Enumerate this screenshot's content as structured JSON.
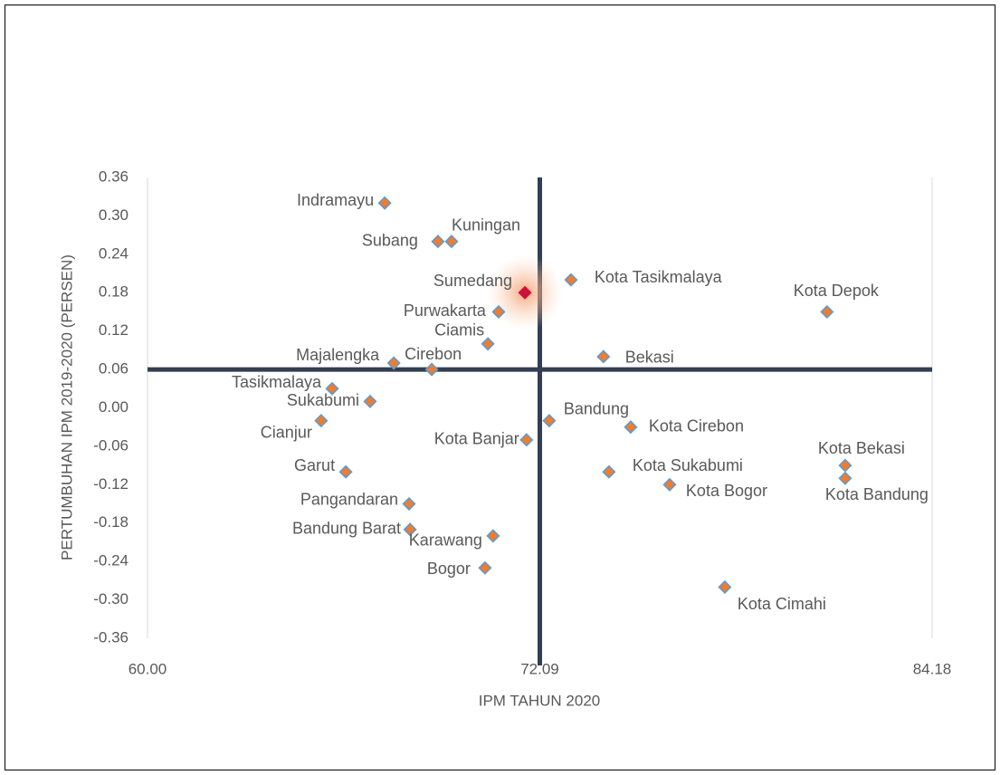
{
  "chart_data": {
    "type": "scatter",
    "x_label": "IPM TAHUN 2020",
    "y_label": "PERTUMBUHAN IPM 2019-2020 (PERSEN)",
    "xlim": [
      60,
      84.18
    ],
    "xticks": [
      {
        "value": 60,
        "label": "60.00"
      },
      72.09,
      84.18
    ],
    "ylim": [
      -0.36,
      0.36
    ],
    "yticks": [
      0.36,
      {
        "value": 0.3,
        "label": "0.30"
      },
      0.24,
      0.18,
      0.12,
      0.06,
      {
        "value": 0,
        "label": "0.00"
      },
      -0.06,
      {
        "value": -0.12,
        "label": "-0.12"
      },
      -0.18,
      -0.24,
      {
        "value": -0.3,
        "label": "-0.30"
      },
      -0.36
    ],
    "grid": "x",
    "x_reference": 72.09,
    "y_reference": 0.06,
    "reference_color": "#333f50",
    "color": "#ed7d31",
    "edge_color": "#5b9bd5",
    "highlight": {
      "name": "Sumedang",
      "color": "#d0103a"
    },
    "series": [
      {
        "name": null,
        "labels": [
          "Indramayu",
          "Subang",
          "Kuningan",
          "Sumedang",
          "Kota Tasikmalaya",
          "Purwakarta",
          "Ciamis",
          "Majalengka",
          "Cirebon",
          "Bekasi",
          "Kota Depok",
          "Tasikmalaya",
          "Sukabumi",
          "Cianjur",
          "Bandung",
          "Kota Cirebon",
          "Kota Banjar",
          "Garut",
          "Kota Sukabumi",
          "Kota Bekasi",
          "Kota Bandung",
          "Kota Bogor",
          "Pangandaran",
          "Bandung Barat",
          "Karawang",
          "Bogor",
          "Kota Cimahi"
        ],
        "x": [
          67.31,
          68.95,
          69.37,
          71.63,
          73.05,
          70.82,
          70.49,
          67.59,
          68.76,
          74.05,
          80.94,
          65.69,
          66.86,
          65.35,
          72.38,
          74.89,
          71.68,
          66.11,
          74.22,
          81.5,
          81.5,
          76.09,
          68.06,
          68.09,
          70.65,
          70.4,
          77.79
        ],
        "values": [
          0.32,
          0.26,
          0.26,
          0.18,
          0.2,
          0.15,
          0.1,
          0.07,
          0.06,
          0.08,
          0.15,
          0.03,
          0.01,
          -0.02,
          -0.02,
          -0.03,
          -0.05,
          -0.1,
          -0.1,
          -0.09,
          -0.11,
          -0.12,
          -0.15,
          -0.19,
          -0.2,
          -0.25,
          -0.28
        ]
      }
    ]
  }
}
